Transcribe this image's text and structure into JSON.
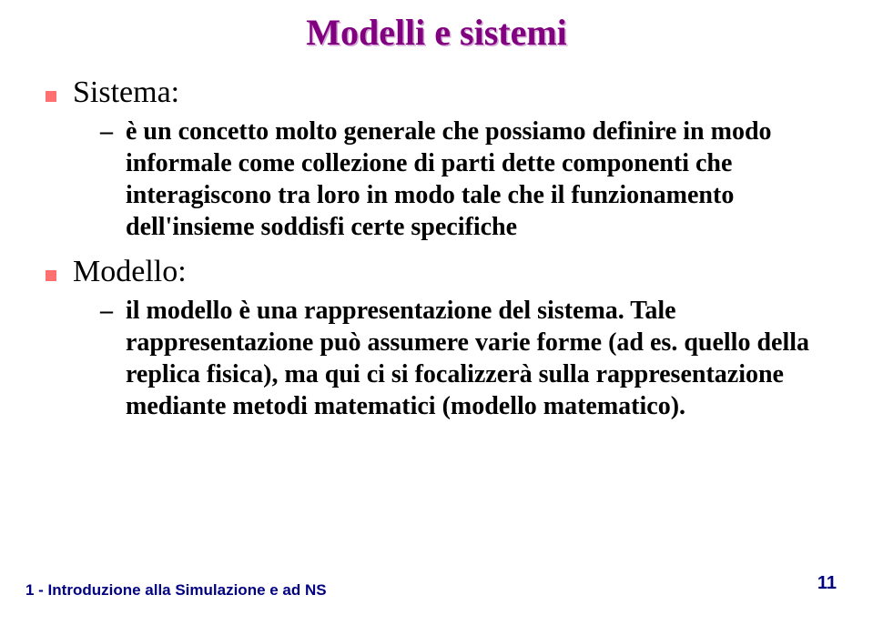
{
  "title": "Modelli e sistemi",
  "items": [
    {
      "label": "Sistema:",
      "sub": "è un concetto molto generale che possiamo definire in modo informale come collezione di parti dette componenti che interagiscono tra loro in modo tale che il funzionamento dell'insieme soddisfi certe specifiche"
    },
    {
      "label": "Modello:",
      "sub": "il modello è una rappresentazione del sistema. Tale rappresentazione può assumere varie forme (ad es. quello della replica fisica), ma qui ci si focalizzerà sulla rappresentazione mediante metodi matematici (modello matematico)."
    }
  ],
  "footer": "1 - Introduzione alla Simulazione e ad NS",
  "page": "11",
  "colors": {
    "title": "#800080",
    "bullet": "#ff7070",
    "footer": "#000080",
    "text": "#000000",
    "background": "#ffffff"
  }
}
